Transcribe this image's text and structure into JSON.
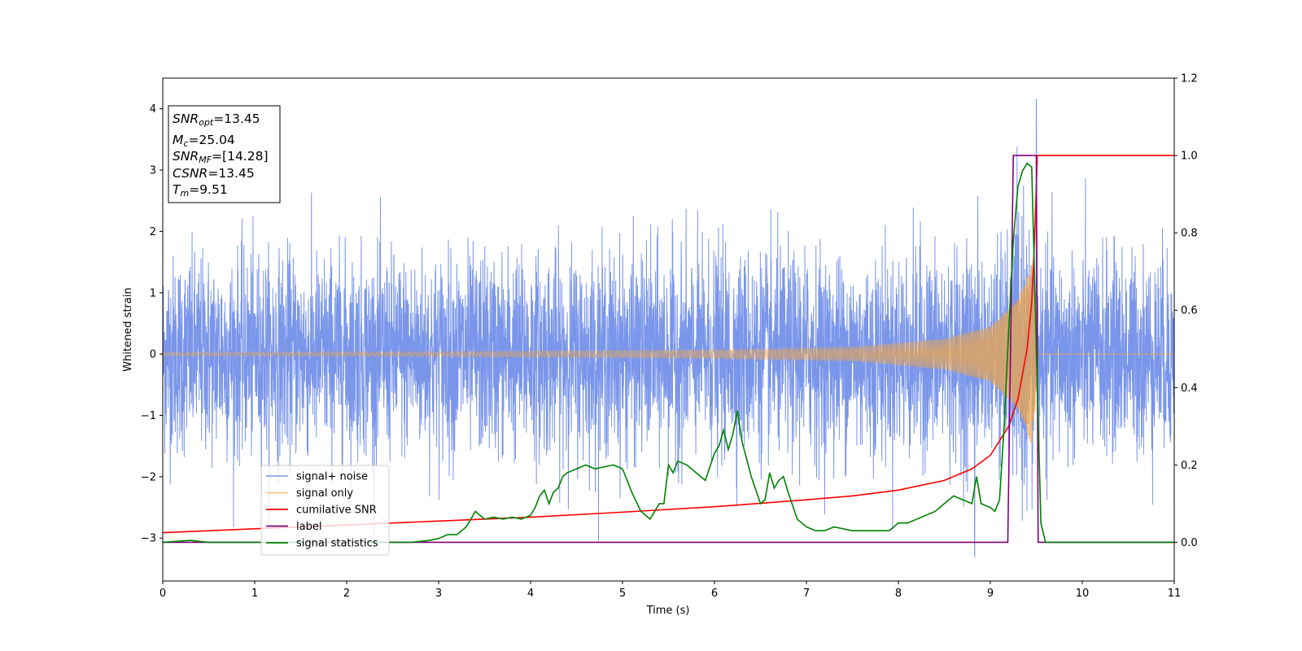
{
  "chart_data": {
    "type": "line",
    "xlabel": "Time (s)",
    "ylabel": "Whitened strain",
    "xlim": [
      0,
      11
    ],
    "ylim": [
      -3.7,
      4.5
    ],
    "y2lim": [
      -0.1,
      1.2
    ],
    "x_ticks": [
      "0",
      "1",
      "2",
      "3",
      "4",
      "5",
      "6",
      "7",
      "8",
      "9",
      "10",
      "11"
    ],
    "y_ticks": [
      "−3",
      "−2",
      "−1",
      "0",
      "1",
      "2",
      "3",
      "4"
    ],
    "y2_ticks": [
      "0.0",
      "0.2",
      "0.4",
      "0.6",
      "0.8",
      "1.0",
      "1.2"
    ],
    "grid": false,
    "legend_position": "lower-left",
    "annotation": {
      "snr_opt": {
        "sym": "SNR",
        "sub": "opt",
        "value": "=13.45"
      },
      "mc": {
        "sym": "M",
        "sub": "c",
        "value": "=25.04"
      },
      "snr_mf": {
        "sym": "SNR",
        "sub": "MF",
        "value": "=[14.28]"
      },
      "csnr": {
        "sym": "CSNR",
        "sub": "",
        "value": "=13.45"
      },
      "tm": {
        "sym": "T",
        "sub": "m",
        "value": "=9.51"
      }
    },
    "series": [
      {
        "name": "signal+ noise",
        "color": "#4169e1",
        "axis": "left",
        "description_values": {
          "mean": 0,
          "std": 0.8,
          "spike_max": 4.15,
          "spike_x": 9.5,
          "min": -3.3
        }
      },
      {
        "name": "signal only",
        "color": "#f5a742",
        "axis": "left",
        "envelope": [
          [
            0,
            0.03
          ],
          [
            3,
            0.04
          ],
          [
            6,
            0.07
          ],
          [
            7.5,
            0.11
          ],
          [
            8.5,
            0.25
          ],
          [
            9.0,
            0.45
          ],
          [
            9.3,
            0.9
          ],
          [
            9.45,
            1.5
          ],
          [
            9.5,
            0.8
          ],
          [
            9.52,
            0.0
          ],
          [
            11,
            0.0
          ]
        ]
      },
      {
        "name": "cumilative SNR",
        "color": "#ff0000",
        "axis": "right",
        "x": [
          0,
          1,
          2,
          3,
          4,
          5,
          6,
          7,
          7.5,
          8,
          8.5,
          8.8,
          9.0,
          9.2,
          9.3,
          9.4,
          9.45,
          9.48,
          9.5,
          9.51,
          11
        ],
        "y": [
          0.025,
          0.035,
          0.045,
          0.055,
          0.065,
          0.078,
          0.092,
          0.11,
          0.12,
          0.135,
          0.16,
          0.19,
          0.225,
          0.3,
          0.37,
          0.5,
          0.62,
          0.78,
          0.92,
          1.0,
          1.0
        ]
      },
      {
        "name": "label",
        "color": "#800080",
        "axis": "right",
        "x": [
          0,
          9.19,
          9.25,
          9.5,
          9.52,
          11
        ],
        "y": [
          0,
          0,
          1,
          1,
          0,
          0
        ]
      },
      {
        "name": "signal statistics",
        "color": "#008000",
        "axis": "right",
        "x": [
          0,
          0.3,
          0.5,
          1,
          1.5,
          2,
          2.5,
          2.7,
          2.9,
          3.0,
          3.1,
          3.2,
          3.3,
          3.4,
          3.5,
          3.6,
          3.7,
          3.8,
          3.9,
          4.0,
          4.05,
          4.1,
          4.15,
          4.2,
          4.25,
          4.3,
          4.35,
          4.4,
          4.5,
          4.6,
          4.7,
          4.8,
          4.9,
          5.0,
          5.1,
          5.2,
          5.3,
          5.4,
          5.45,
          5.5,
          5.55,
          5.6,
          5.7,
          5.8,
          5.9,
          6.0,
          6.05,
          6.1,
          6.15,
          6.2,
          6.25,
          6.3,
          6.4,
          6.5,
          6.55,
          6.6,
          6.65,
          6.7,
          6.75,
          6.8,
          6.9,
          7.0,
          7.1,
          7.2,
          7.3,
          7.5,
          7.7,
          7.9,
          8.0,
          8.1,
          8.2,
          8.3,
          8.4,
          8.5,
          8.6,
          8.7,
          8.8,
          8.85,
          8.9,
          9.0,
          9.05,
          9.1,
          9.15,
          9.2,
          9.25,
          9.3,
          9.35,
          9.4,
          9.45,
          9.5,
          9.55,
          9.6,
          10,
          11
        ],
        "y": [
          0.0,
          0.005,
          0.0,
          0.0,
          0.0,
          0.0,
          0.0,
          0.0,
          0.005,
          0.01,
          0.02,
          0.02,
          0.04,
          0.08,
          0.06,
          0.065,
          0.06,
          0.065,
          0.06,
          0.07,
          0.09,
          0.12,
          0.135,
          0.1,
          0.13,
          0.14,
          0.17,
          0.18,
          0.19,
          0.2,
          0.19,
          0.195,
          0.2,
          0.19,
          0.13,
          0.08,
          0.06,
          0.1,
          0.1,
          0.2,
          0.18,
          0.21,
          0.2,
          0.18,
          0.16,
          0.23,
          0.25,
          0.29,
          0.24,
          0.28,
          0.34,
          0.26,
          0.17,
          0.1,
          0.11,
          0.18,
          0.14,
          0.16,
          0.17,
          0.13,
          0.06,
          0.04,
          0.03,
          0.03,
          0.04,
          0.03,
          0.03,
          0.03,
          0.05,
          0.05,
          0.06,
          0.07,
          0.08,
          0.1,
          0.12,
          0.11,
          0.1,
          0.17,
          0.1,
          0.09,
          0.08,
          0.11,
          0.3,
          0.55,
          0.78,
          0.92,
          0.96,
          0.98,
          0.97,
          0.5,
          0.05,
          0.0,
          0.0,
          0.0
        ]
      }
    ]
  }
}
